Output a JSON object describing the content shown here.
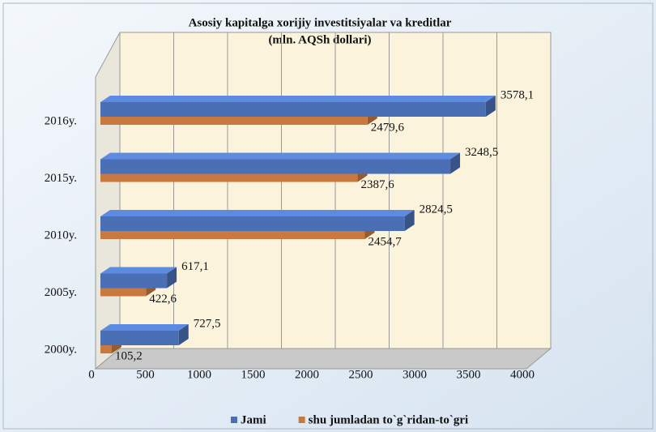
{
  "chart_data": {
    "type": "hbar3d",
    "title": "Asosiy kapitalga xorijiy investitsiyalar va kreditlar",
    "subtitle": "(mln. AQSh dollari)",
    "categories": [
      "2016y.",
      "2015y.",
      "2010y.",
      "2005y.",
      "2000y."
    ],
    "series": [
      {
        "name": "Jami",
        "color": "#4a6fb5",
        "values": [
          3578.1,
          3248.5,
          2824.5,
          617.1,
          727.5
        ],
        "value_labels": [
          "3578,1",
          "3248,5",
          "2824,5",
          "617,1",
          "727,5"
        ]
      },
      {
        "name": "shu jumladan to`g`ridan-to`gri",
        "color": "#c8793f",
        "values": [
          2479.6,
          2387.6,
          2454.7,
          422.6,
          105.2
        ],
        "value_labels": [
          "2479,6",
          "2387,6",
          "2454,7",
          "422,6",
          "105,2"
        ]
      }
    ],
    "xlim": [
      0,
      4000
    ],
    "xticks": [
      0,
      500,
      1000,
      1500,
      2000,
      2500,
      3000,
      3500,
      4000
    ],
    "grid": true,
    "legend": "bottom"
  }
}
